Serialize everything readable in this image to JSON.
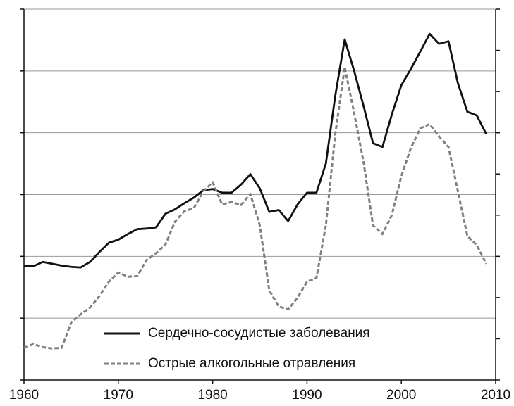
{
  "chart_data": {
    "type": "line",
    "x": [
      1960,
      1961,
      1962,
      1963,
      1964,
      1965,
      1966,
      1967,
      1968,
      1969,
      1970,
      1971,
      1972,
      1973,
      1974,
      1975,
      1976,
      1977,
      1978,
      1979,
      1980,
      1981,
      1982,
      1983,
      1984,
      1985,
      1986,
      1987,
      1988,
      1989,
      1990,
      1991,
      1992,
      1993,
      1994,
      1995,
      1996,
      1997,
      1998,
      1999,
      2000,
      2001,
      2002,
      2003,
      2004,
      2005,
      2006,
      2007,
      2008,
      2009
    ],
    "series": [
      {
        "name": "Сердечно-сосудистые заболевания",
        "color": "#111111",
        "dash": false,
        "values": [
          1.84,
          1.84,
          1.91,
          1.88,
          1.85,
          1.83,
          1.82,
          1.91,
          2.07,
          2.22,
          2.27,
          2.36,
          2.44,
          2.45,
          2.47,
          2.69,
          2.76,
          2.86,
          2.95,
          3.07,
          3.09,
          3.03,
          3.03,
          3.16,
          3.33,
          3.1,
          2.72,
          2.75,
          2.57,
          2.84,
          3.03,
          3.03,
          3.5,
          4.6,
          5.51,
          5.0,
          4.43,
          3.83,
          3.77,
          4.3,
          4.77,
          5.03,
          5.31,
          5.6,
          5.44,
          5.48,
          4.8,
          4.34,
          4.28,
          3.98
        ]
      },
      {
        "name": "Острые алкогольные отравления",
        "color": "#808080",
        "dash": true,
        "values": [
          0.52,
          0.58,
          0.53,
          0.51,
          0.52,
          0.93,
          1.06,
          1.17,
          1.36,
          1.59,
          1.74,
          1.67,
          1.68,
          1.94,
          2.05,
          2.19,
          2.56,
          2.73,
          2.78,
          3.05,
          3.2,
          2.84,
          2.88,
          2.83,
          3.01,
          2.5,
          1.45,
          1.19,
          1.14,
          1.33,
          1.59,
          1.65,
          2.5,
          3.98,
          5.06,
          4.32,
          3.52,
          2.5,
          2.36,
          2.67,
          3.3,
          3.75,
          4.07,
          4.14,
          3.94,
          3.77,
          3.05,
          2.33,
          2.18,
          1.88
        ]
      }
    ],
    "xlim": [
      1960,
      2010
    ],
    "xticks": [
      1960,
      1970,
      1980,
      1990,
      2000,
      2010
    ],
    "ylim": [
      0,
      6
    ],
    "yticks": [
      0,
      1,
      2,
      3,
      4,
      5,
      6
    ],
    "y2lim": [
      0,
      9
    ],
    "y2ticks": [
      0,
      1,
      2,
      3,
      4,
      5,
      6,
      7,
      8,
      9
    ],
    "grid": true,
    "legend": "lower center"
  }
}
